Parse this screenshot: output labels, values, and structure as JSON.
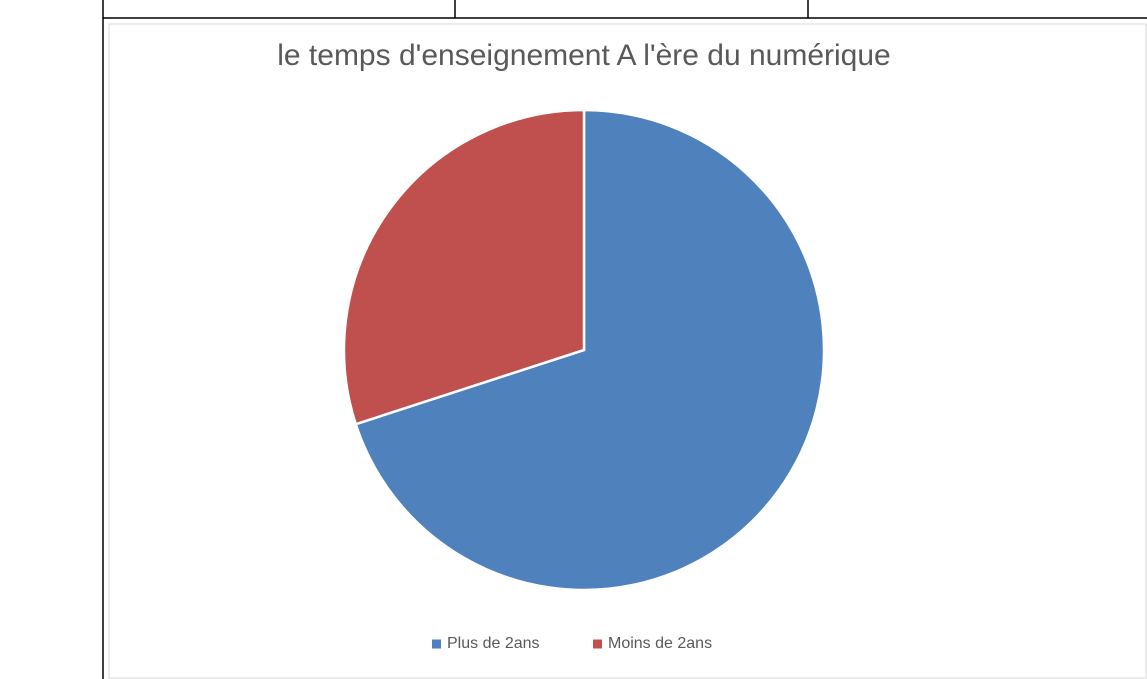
{
  "chart_data": {
    "type": "pie",
    "title": "le temps d'enseignement A l'ère du numérique",
    "categories": [
      "Plus de 2ans",
      "Moins de 2ans"
    ],
    "values": [
      70,
      30
    ],
    "colors": [
      "#4f81bd",
      "#c0504d"
    ],
    "legend": "bottom"
  }
}
